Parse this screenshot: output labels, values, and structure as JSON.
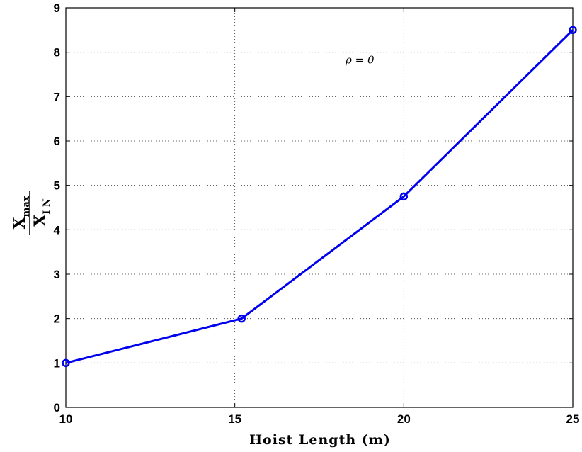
{
  "chart_data": {
    "type": "line",
    "x": [
      10,
      15.2,
      20,
      25
    ],
    "series": [
      {
        "values": [
          1,
          2,
          4.75,
          8.5
        ],
        "color": "#0000ee",
        "marker": "circle"
      }
    ],
    "xlabel": "Hoist Length (m)",
    "ylabel": {
      "numerator": "X",
      "numerator_sub": "max",
      "denominator": "X",
      "denominator_sub": "I N"
    },
    "xlim": [
      10,
      25
    ],
    "ylim": [
      0,
      9
    ],
    "xticks": [
      10,
      15,
      20,
      25
    ],
    "yticks": [
      0,
      1,
      2,
      3,
      4,
      5,
      6,
      7,
      8,
      9
    ],
    "grid": true,
    "annotation": {
      "text": "ρ = 0",
      "x": 18.7,
      "y": 7.75
    }
  }
}
